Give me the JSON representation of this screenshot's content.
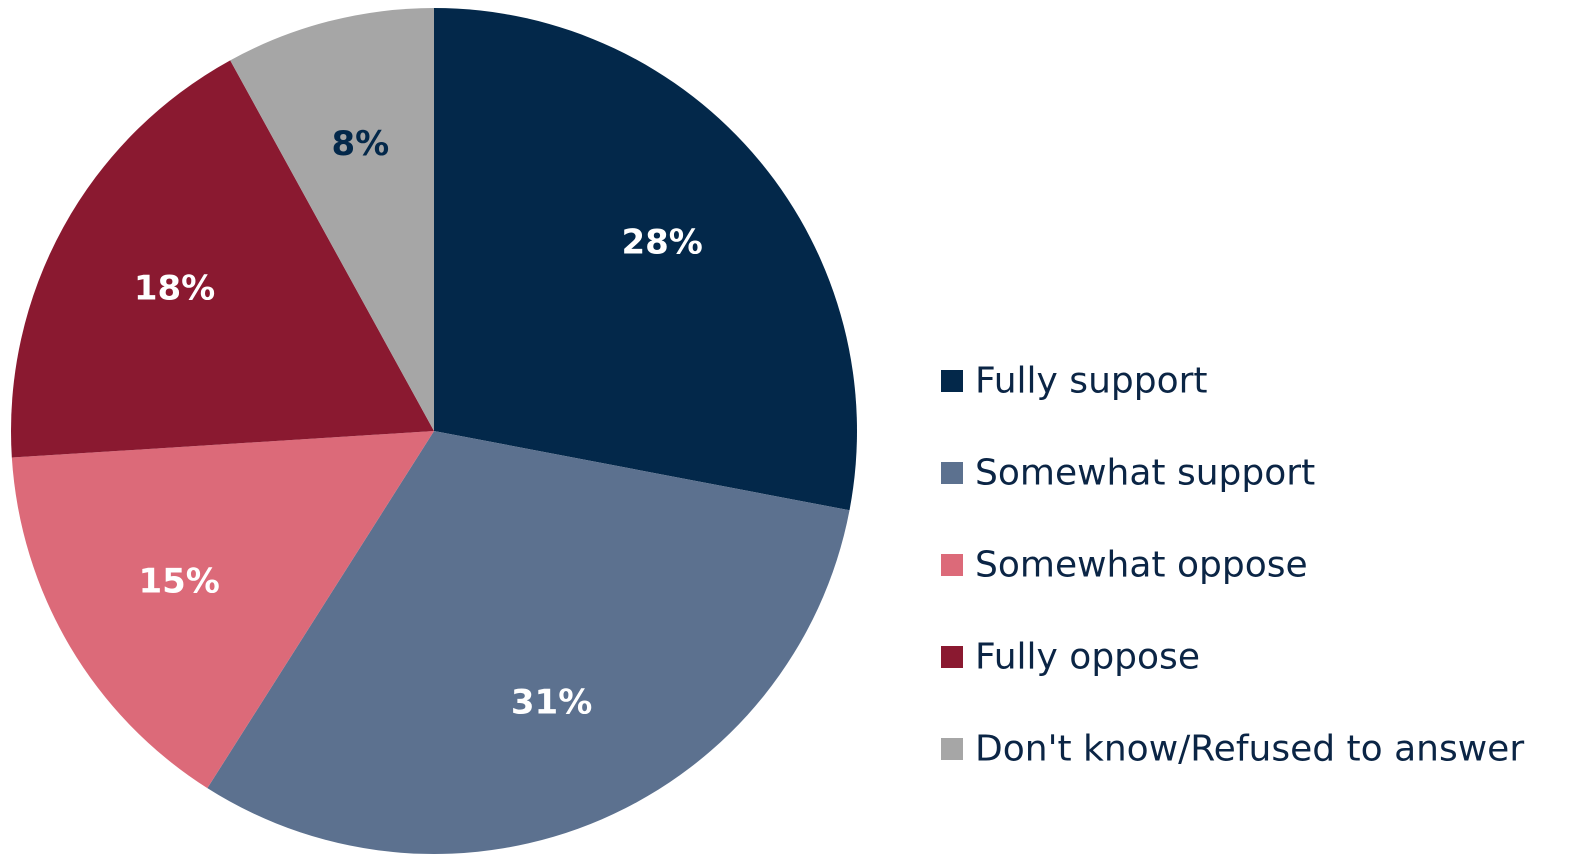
{
  "chart_data": {
    "type": "pie",
    "start_angle_deg": 0,
    "direction": "clockwise",
    "legend_position": "right",
    "slices": [
      {
        "label": "Fully support",
        "value": 28,
        "display": "28%",
        "color": "#03284a",
        "label_color": "#ffffff"
      },
      {
        "label": "Somewhat support",
        "value": 31,
        "display": "31%",
        "color": "#5c718f",
        "label_color": "#ffffff"
      },
      {
        "label": "Somewhat oppose",
        "value": 15,
        "display": "15%",
        "color": "#dc6a79",
        "label_color": "#ffffff"
      },
      {
        "label": "Fully oppose",
        "value": 18,
        "display": "18%",
        "color": "#8a1930",
        "label_color": "#ffffff"
      },
      {
        "label": "Don't know/Refused to answer",
        "value": 8,
        "display": "8%",
        "color": "#a6a6a6",
        "label_color": "#03284a"
      }
    ]
  }
}
